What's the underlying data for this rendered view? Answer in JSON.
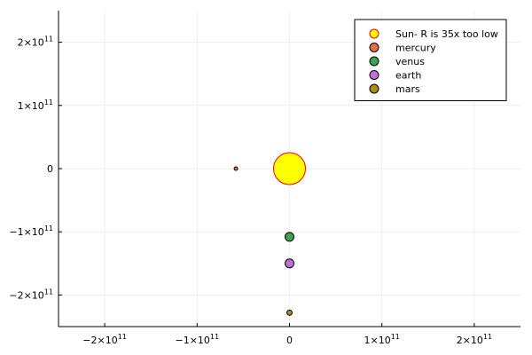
{
  "chart_data": {
    "type": "scatter",
    "xlim": [
      -250000000000.0,
      250000000000.0
    ],
    "ylim": [
      -250000000000.0,
      250000000000.0
    ],
    "grid": true,
    "legend_position": "top-right",
    "x_ticks": [
      {
        "value": -200000000000.0,
        "mantissa": "−2×10",
        "exp": "11"
      },
      {
        "value": -100000000000.0,
        "mantissa": "−1×10",
        "exp": "11"
      },
      {
        "value": 0,
        "mantissa": "0",
        "exp": ""
      },
      {
        "value": 100000000000.0,
        "mantissa": "1×10",
        "exp": "11"
      },
      {
        "value": 200000000000.0,
        "mantissa": "2×10",
        "exp": "11"
      }
    ],
    "y_ticks": [
      {
        "value": 200000000000.0,
        "mantissa": "2×10",
        "exp": "11"
      },
      {
        "value": 100000000000.0,
        "mantissa": "1×10",
        "exp": "11"
      },
      {
        "value": 0,
        "mantissa": "0",
        "exp": ""
      },
      {
        "value": -100000000000.0,
        "mantissa": "−1×10",
        "exp": "11"
      },
      {
        "value": -200000000000.0,
        "mantissa": "−2×10",
        "exp": "11"
      }
    ],
    "series": [
      {
        "name": "Sun- R is 35x too low",
        "color": "#ffff00",
        "stroke": "#ff0000",
        "marker_size": 18,
        "x": [
          0
        ],
        "y": [
          0
        ]
      },
      {
        "name": "mercury",
        "color": "#e26f46",
        "stroke": "#000000",
        "marker_size": 2,
        "x": [
          -58000000000.0
        ],
        "y": [
          0
        ]
      },
      {
        "name": "venus",
        "color": "#3da44d",
        "stroke": "#000000",
        "marker_size": 5,
        "x": [
          0
        ],
        "y": [
          -108000000000.0
        ]
      },
      {
        "name": "earth",
        "color": "#c271d2",
        "stroke": "#000000",
        "marker_size": 5,
        "x": [
          0
        ],
        "y": [
          -150000000000.0
        ]
      },
      {
        "name": "mars",
        "color": "#ac8d18",
        "stroke": "#000000",
        "marker_size": 3,
        "x": [
          0
        ],
        "y": [
          -228000000000.0
        ]
      }
    ]
  }
}
